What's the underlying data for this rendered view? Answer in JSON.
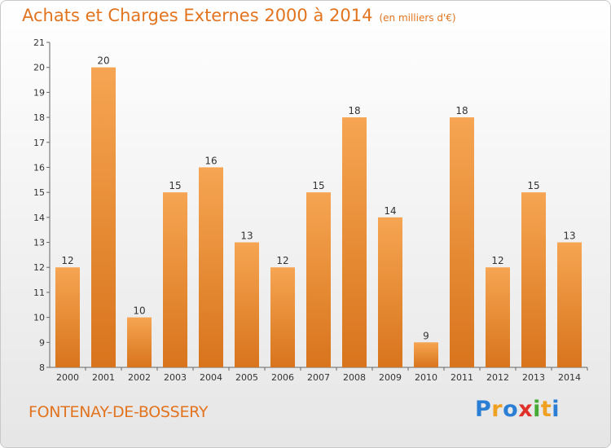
{
  "page": {
    "title": "Achats et Charges Externes 2000 à 2014",
    "unit": "(en milliers d'€)",
    "commune": "FONTENAY-DE-BOSSERY",
    "logo": {
      "letters": [
        "P",
        "r",
        "o",
        "x",
        "i",
        "t",
        "i"
      ],
      "colors": [
        "#2a7fd4",
        "#f0a020",
        "#2a7fd4",
        "#e0302a",
        "#44aa33",
        "#f0a020",
        "#2a7fd4"
      ]
    }
  },
  "chart_data": {
    "type": "bar",
    "title": "Achats et Charges Externes 2000 à 2014",
    "categories": [
      "2000",
      "2001",
      "2002",
      "2003",
      "2004",
      "2005",
      "2006",
      "2007",
      "2008",
      "2009",
      "2010",
      "2011",
      "2012",
      "2013",
      "2014"
    ],
    "values": [
      12,
      20,
      10,
      15,
      16,
      13,
      12,
      15,
      18,
      14,
      9,
      18,
      12,
      15,
      13
    ],
    "ylim": [
      8,
      21
    ],
    "yticks": [
      8,
      9,
      10,
      11,
      12,
      13,
      14,
      15,
      16,
      17,
      18,
      19,
      20,
      21
    ],
    "grid": false,
    "bar_color_top": "#f6a552",
    "bar_color_bottom": "#d8741c"
  }
}
